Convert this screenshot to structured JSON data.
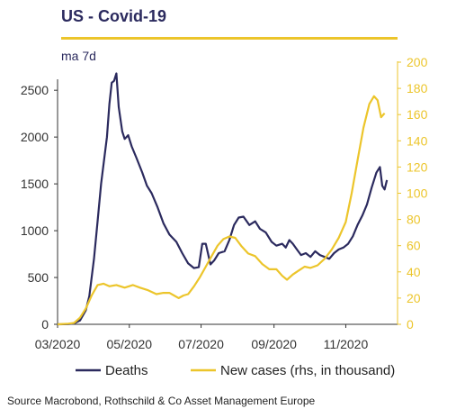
{
  "title": "US - Covid-19",
  "subtitle": "ma 7d",
  "source": "Source Macrobond, Rothschild & Co Asset Management Europe",
  "colors": {
    "deaths": "#2b2a5e",
    "cases": "#ecc52b",
    "title_rule": "#ecc52b"
  },
  "chart_data": {
    "type": "line",
    "title": "US - Covid-19",
    "subtitle": "ma 7d",
    "x_tick_labels": [
      "03/2020",
      "05/2020",
      "07/2020",
      "09/2020",
      "11/2020"
    ],
    "x_ticks": [
      "2020-03-01",
      "2020-05-01",
      "2020-07-01",
      "2020-09-01",
      "2020-11-01"
    ],
    "xlim": [
      "2020-03-01",
      "2020-12-15"
    ],
    "ylim_left": [
      0,
      2700
    ],
    "yticks_left": [
      0,
      500,
      1000,
      1500,
      2000,
      2500
    ],
    "ylim_right": [
      0,
      200
    ],
    "yticks_right": [
      0,
      20,
      40,
      60,
      80,
      100,
      120,
      140,
      160,
      180,
      200
    ],
    "grid": false,
    "legend_position": "bottom",
    "series": [
      {
        "name": "Deaths",
        "axis": "left",
        "points": [
          [
            "2020-03-01",
            0
          ],
          [
            "2020-03-10",
            2
          ],
          [
            "2020-03-15",
            10
          ],
          [
            "2020-03-20",
            40
          ],
          [
            "2020-03-25",
            150
          ],
          [
            "2020-03-28",
            300
          ],
          [
            "2020-04-01",
            700
          ],
          [
            "2020-04-04",
            1100
          ],
          [
            "2020-04-07",
            1500
          ],
          [
            "2020-04-10",
            1800
          ],
          [
            "2020-04-12",
            2000
          ],
          [
            "2020-04-14",
            2350
          ],
          [
            "2020-04-16",
            2580
          ],
          [
            "2020-04-18",
            2600
          ],
          [
            "2020-04-20",
            2680
          ],
          [
            "2020-04-22",
            2320
          ],
          [
            "2020-04-25",
            2060
          ],
          [
            "2020-04-27",
            1980
          ],
          [
            "2020-04-30",
            2020
          ],
          [
            "2020-05-03",
            1900
          ],
          [
            "2020-05-07",
            1780
          ],
          [
            "2020-05-12",
            1620
          ],
          [
            "2020-05-16",
            1480
          ],
          [
            "2020-05-20",
            1400
          ],
          [
            "2020-05-25",
            1250
          ],
          [
            "2020-05-30",
            1080
          ],
          [
            "2020-06-04",
            960
          ],
          [
            "2020-06-10",
            880
          ],
          [
            "2020-06-15",
            760
          ],
          [
            "2020-06-20",
            650
          ],
          [
            "2020-06-25",
            600
          ],
          [
            "2020-06-29",
            610
          ],
          [
            "2020-07-02",
            860
          ],
          [
            "2020-07-05",
            860
          ],
          [
            "2020-07-09",
            640
          ],
          [
            "2020-07-12",
            680
          ],
          [
            "2020-07-16",
            760
          ],
          [
            "2020-07-21",
            780
          ],
          [
            "2020-07-25",
            900
          ],
          [
            "2020-07-29",
            1060
          ],
          [
            "2020-08-02",
            1140
          ],
          [
            "2020-08-06",
            1150
          ],
          [
            "2020-08-11",
            1060
          ],
          [
            "2020-08-16",
            1100
          ],
          [
            "2020-08-20",
            1020
          ],
          [
            "2020-08-25",
            980
          ],
          [
            "2020-08-30",
            880
          ],
          [
            "2020-09-03",
            840
          ],
          [
            "2020-09-08",
            860
          ],
          [
            "2020-09-11",
            820
          ],
          [
            "2020-09-14",
            900
          ],
          [
            "2020-09-17",
            860
          ],
          [
            "2020-09-21",
            790
          ],
          [
            "2020-09-24",
            740
          ],
          [
            "2020-09-28",
            760
          ],
          [
            "2020-10-02",
            720
          ],
          [
            "2020-10-06",
            780
          ],
          [
            "2020-10-10",
            740
          ],
          [
            "2020-10-14",
            720
          ],
          [
            "2020-10-18",
            700
          ],
          [
            "2020-10-22",
            760
          ],
          [
            "2020-10-26",
            800
          ],
          [
            "2020-10-30",
            820
          ],
          [
            "2020-11-03",
            860
          ],
          [
            "2020-11-07",
            940
          ],
          [
            "2020-11-11",
            1060
          ],
          [
            "2020-11-15",
            1160
          ],
          [
            "2020-11-19",
            1280
          ],
          [
            "2020-11-23",
            1460
          ],
          [
            "2020-11-27",
            1620
          ],
          [
            "2020-11-30",
            1680
          ],
          [
            "2020-12-02",
            1480
          ],
          [
            "2020-12-04",
            1440
          ],
          [
            "2020-12-06",
            1540
          ]
        ]
      },
      {
        "name": "New cases (rhs, in thousand)",
        "axis": "right",
        "points": [
          [
            "2020-03-01",
            0
          ],
          [
            "2020-03-10",
            0.5
          ],
          [
            "2020-03-15",
            1
          ],
          [
            "2020-03-20",
            5
          ],
          [
            "2020-03-25",
            12
          ],
          [
            "2020-03-30",
            22
          ],
          [
            "2020-04-04",
            30
          ],
          [
            "2020-04-09",
            31
          ],
          [
            "2020-04-14",
            29
          ],
          [
            "2020-04-20",
            30
          ],
          [
            "2020-04-27",
            28
          ],
          [
            "2020-05-04",
            30
          ],
          [
            "2020-05-10",
            28
          ],
          [
            "2020-05-17",
            26
          ],
          [
            "2020-05-24",
            23
          ],
          [
            "2020-05-30",
            24
          ],
          [
            "2020-06-04",
            24
          ],
          [
            "2020-06-08",
            22
          ],
          [
            "2020-06-12",
            20
          ],
          [
            "2020-06-16",
            22
          ],
          [
            "2020-06-20",
            23
          ],
          [
            "2020-06-25",
            29
          ],
          [
            "2020-06-30",
            36
          ],
          [
            "2020-07-05",
            44
          ],
          [
            "2020-07-10",
            52
          ],
          [
            "2020-07-15",
            60
          ],
          [
            "2020-07-20",
            65
          ],
          [
            "2020-07-25",
            67
          ],
          [
            "2020-07-30",
            66
          ],
          [
            "2020-08-04",
            60
          ],
          [
            "2020-08-10",
            54
          ],
          [
            "2020-08-16",
            52
          ],
          [
            "2020-08-22",
            46
          ],
          [
            "2020-08-28",
            42
          ],
          [
            "2020-09-03",
            42
          ],
          [
            "2020-09-08",
            37
          ],
          [
            "2020-09-12",
            34
          ],
          [
            "2020-09-17",
            38
          ],
          [
            "2020-09-22",
            41
          ],
          [
            "2020-09-27",
            44
          ],
          [
            "2020-10-02",
            43
          ],
          [
            "2020-10-08",
            45
          ],
          [
            "2020-10-14",
            50
          ],
          [
            "2020-10-20",
            57
          ],
          [
            "2020-10-26",
            66
          ],
          [
            "2020-11-01",
            78
          ],
          [
            "2020-11-06",
            100
          ],
          [
            "2020-11-11",
            125
          ],
          [
            "2020-11-16",
            150
          ],
          [
            "2020-11-21",
            168
          ],
          [
            "2020-11-25",
            174
          ],
          [
            "2020-11-28",
            171
          ],
          [
            "2020-12-01",
            158
          ],
          [
            "2020-12-04",
            161
          ]
        ]
      }
    ]
  }
}
